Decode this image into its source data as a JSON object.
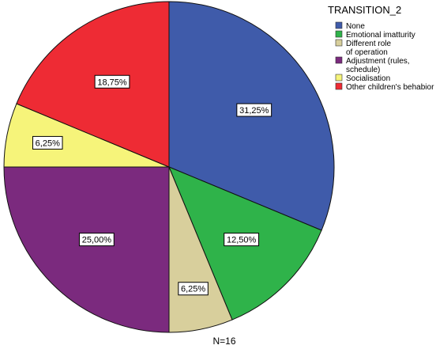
{
  "chart_data": {
    "type": "pie",
    "legend_title": "TRANSITION_2",
    "legend_position": "top-right",
    "footer": "N=16",
    "slices": [
      {
        "name": "None",
        "value": 31.25,
        "label": "31,25%",
        "color": "#3f5baa"
      },
      {
        "name": "Emotional imatturity",
        "value": 12.5,
        "label": "12,50%",
        "color": "#2fb34a"
      },
      {
        "name": "Different role of operation",
        "value": 6.25,
        "label": "6,25%",
        "color": "#d8cf9c"
      },
      {
        "name": "Adjustment (rules, schedule)",
        "value": 25.0,
        "label": "25,00%",
        "color": "#7b2a7e"
      },
      {
        "name": "Socialisation",
        "value": 6.25,
        "label": "6,25%",
        "color": "#f6f47a"
      },
      {
        "name": "Other children's behabior",
        "value": 18.75,
        "label": "18,75%",
        "color": "#ee2b34"
      }
    ]
  }
}
